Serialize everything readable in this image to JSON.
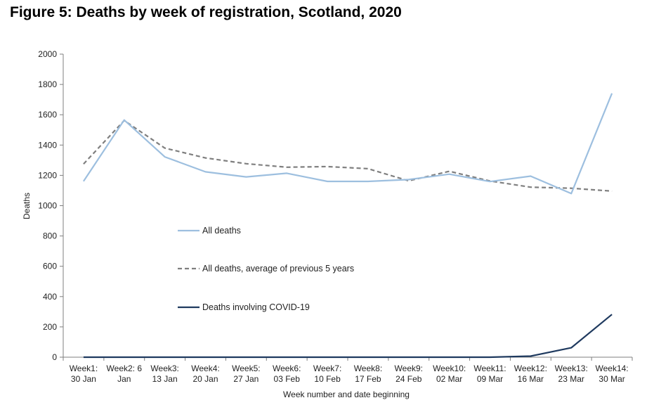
{
  "chart_data": {
    "type": "line",
    "title": "Figure 5: Deaths by week of registration, Scotland, 2020",
    "xlabel": "Week number and date beginning",
    "ylabel": "Deaths",
    "ylim": [
      0,
      2000
    ],
    "yticks": [
      0,
      200,
      400,
      600,
      800,
      1000,
      1200,
      1400,
      1600,
      1800,
      2000
    ],
    "grid": false,
    "categories": [
      [
        "Week1:",
        "30 Jan"
      ],
      [
        "Week2: 6",
        "Jan"
      ],
      [
        "Week3:",
        "13 Jan"
      ],
      [
        "Week4:",
        "20 Jan"
      ],
      [
        "Week5:",
        "27 Jan"
      ],
      [
        "Week6:",
        "03 Feb"
      ],
      [
        "Week7:",
        "10 Feb"
      ],
      [
        "Week8:",
        "17 Feb"
      ],
      [
        "Week9:",
        "24 Feb"
      ],
      [
        "Week10:",
        "02 Mar"
      ],
      [
        "Week11:",
        "09 Mar"
      ],
      [
        "Week12:",
        "16 Mar"
      ],
      [
        "Week13:",
        "23 Mar"
      ],
      [
        "Week14:",
        "30 Mar"
      ]
    ],
    "series": [
      {
        "name": "All deaths",
        "color": "#9dbfdf",
        "style": "solid",
        "values": [
          1161,
          1565,
          1322,
          1223,
          1190,
          1214,
          1160,
          1160,
          1172,
          1208,
          1159,
          1195,
          1080,
          1741
        ]
      },
      {
        "name": "All deaths, average of previous 5 years",
        "color": "#7f7f7f",
        "style": "dashed",
        "values": [
          1275,
          1562,
          1380,
          1315,
          1277,
          1254,
          1258,
          1244,
          1164,
          1227,
          1163,
          1122,
          1115,
          1096
        ]
      },
      {
        "name": "Deaths involving COVID-19",
        "color": "#1f3a5f",
        "style": "solid",
        "values": [
          0,
          0,
          0,
          0,
          0,
          0,
          0,
          0,
          0,
          0,
          0,
          7,
          62,
          282
        ]
      }
    ],
    "legend_position": "center-left"
  }
}
